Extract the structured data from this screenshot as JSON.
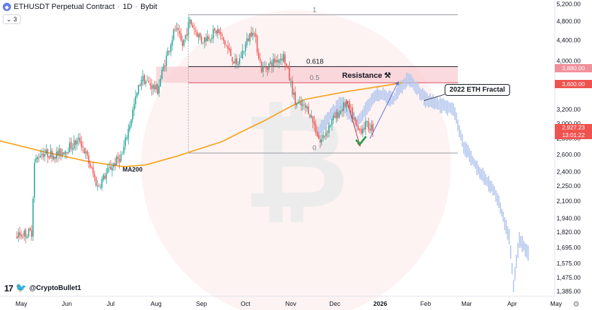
{
  "header": {
    "symbol": "ETHUSDT Perpetual Contract",
    "interval": "1D",
    "exchange": "Bybit",
    "indicator_count": "3"
  },
  "brand": {
    "handle": "@CryptoBullet1"
  },
  "colors": {
    "up": "#26a69a",
    "down": "#ef5350",
    "ma": "#f5a623",
    "fractal": "#b3c7ee",
    "zone": "#f8cdd3",
    "price_tag": "#ef5350"
  },
  "chart_data": {
    "type": "candlestick",
    "title": "ETHUSDT Perpetual Contract · 1D · Bybit",
    "x_axis": {
      "tick_labels": [
        "May",
        "Jun",
        "Jul",
        "Aug",
        "Sep",
        "Oct",
        "Nov",
        "Dec",
        "2026",
        "Feb",
        "Mar",
        "Apr",
        "May"
      ],
      "log_scale": false
    },
    "y_axis": {
      "tick_labels": [
        "1,385.00",
        "1,475.00",
        "1,575.00",
        "1,695.00",
        "1,820.00",
        "1,940.00",
        "2,100.00",
        "2,250.00",
        "2,400.00",
        "2,600.00",
        "2,800.00",
        "3,000.00",
        "3,200.00",
        "3,600.00",
        "4,000.00",
        "4,400.00",
        "4,800.00",
        "5,200.00"
      ],
      "log_scale": true,
      "range": [
        1330,
        5250
      ]
    },
    "price_key": [
      [
        "2025-04-28",
        1790
      ],
      [
        "2025-05-08",
        1820
      ],
      [
        "2025-05-10",
        2500
      ],
      [
        "2025-05-14",
        2620
      ],
      [
        "2025-05-26",
        2600
      ],
      [
        "2025-06-10",
        2780
      ],
      [
        "2025-06-22",
        2240
      ],
      [
        "2025-07-01",
        2450
      ],
      [
        "2025-07-09",
        2600
      ],
      [
        "2025-07-14",
        3000
      ],
      [
        "2025-07-22",
        3700
      ],
      [
        "2025-08-02",
        3500
      ],
      [
        "2025-08-14",
        4650
      ],
      [
        "2025-08-19",
        4300
      ],
      [
        "2025-08-24",
        4800
      ],
      [
        "2025-09-01",
        4400
      ],
      [
        "2025-09-12",
        4600
      ],
      [
        "2025-09-25",
        3900
      ],
      [
        "2025-10-06",
        4650
      ],
      [
        "2025-10-12",
        3850
      ],
      [
        "2025-10-27",
        4100
      ],
      [
        "2025-11-04",
        3300
      ],
      [
        "2025-11-13",
        3200
      ],
      [
        "2025-11-21",
        2750
      ],
      [
        "2025-11-28",
        3000
      ],
      [
        "2025-12-09",
        3300
      ],
      [
        "2025-12-17",
        2900
      ],
      [
        "2025-12-22",
        2980
      ],
      [
        "2025-12-27",
        2940
      ]
    ],
    "fractal_key": [
      [
        "2025-11-20",
        2900
      ],
      [
        "2025-12-05",
        3300
      ],
      [
        "2025-12-16",
        3000
      ],
      [
        "2025-12-30",
        3450
      ],
      [
        "2026-01-10",
        3350
      ],
      [
        "2026-01-20",
        3720
      ],
      [
        "2026-02-01",
        3350
      ],
      [
        "2026-02-20",
        3200
      ],
      [
        "2026-02-27",
        2700
      ],
      [
        "2026-03-10",
        2400
      ],
      [
        "2026-03-20",
        2200
      ],
      [
        "2026-03-30",
        1780
      ],
      [
        "2026-04-02",
        1420
      ],
      [
        "2026-04-06",
        1760
      ],
      [
        "2026-04-12",
        1650
      ]
    ],
    "ma200_key": [
      [
        "2025-04-01",
        2840
      ],
      [
        "2025-05-15",
        2640
      ],
      [
        "2025-06-15",
        2520
      ],
      [
        "2025-07-10",
        2460
      ],
      [
        "2025-07-25",
        2480
      ],
      [
        "2025-08-15",
        2580
      ],
      [
        "2025-09-15",
        2760
      ],
      [
        "2025-10-15",
        3050
      ],
      [
        "2025-11-10",
        3350
      ],
      [
        "2025-12-10",
        3480
      ],
      [
        "2026-01-01",
        3560
      ],
      [
        "2026-01-16",
        3620
      ]
    ],
    "fibonacci": {
      "levels": [
        {
          "label": "1",
          "price": 4950
        },
        {
          "label": "0.618",
          "price": 3900
        },
        {
          "label": "0.5",
          "price": 3620
        },
        {
          "label": "0",
          "price": 2620
        }
      ],
      "start_date": "2025-08-23",
      "end_date": "2026-02-23"
    },
    "resistance_zone": {
      "low": 3620,
      "high": 3900,
      "start_date": "2025-08-01",
      "end_date": "2026-02-23"
    },
    "annotations": {
      "resistance": "Resistance",
      "fractal": "2022 ETH Fractal",
      "ma": "MA200"
    },
    "price_tags": {
      "r1": "3,880.00",
      "r2": "3,600.00",
      "last": "2,927.23",
      "countdown": "13:01:22"
    }
  }
}
